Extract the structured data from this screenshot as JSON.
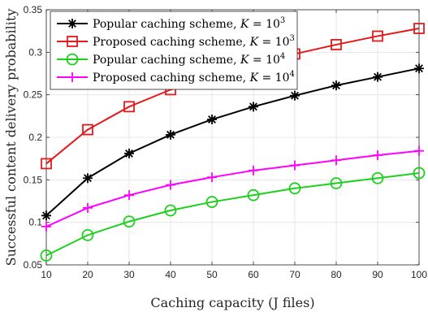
{
  "chart_data": {
    "type": "line",
    "xlabel": "Caching capacity (J files)",
    "ylabel": "Successful content delivery probability",
    "xlim": [
      10,
      100
    ],
    "ylim": [
      0.05,
      0.35
    ],
    "x": [
      10,
      20,
      30,
      40,
      50,
      60,
      70,
      80,
      90,
      100
    ],
    "x_ticks": [
      "10",
      "20",
      "30",
      "40",
      "50",
      "60",
      "70",
      "80",
      "90",
      "100"
    ],
    "y_ticks": [
      "0.05",
      "0.1",
      "0.15",
      "0.2",
      "0.25",
      "0.3",
      "0.35"
    ],
    "grid": true,
    "legend_position": "top-left",
    "series": [
      {
        "name": "Popular caching scheme, K = 10^3",
        "legend_main": "Popular caching scheme, ",
        "legend_k": "K",
        "legend_eq": " = 10",
        "legend_sup": "3",
        "color": "#000000",
        "marker": "asterisk",
        "values": [
          0.108,
          0.152,
          0.181,
          0.203,
          0.221,
          0.236,
          0.249,
          0.261,
          0.271,
          0.281
        ]
      },
      {
        "name": "Proposed caching scheme, K = 10^3",
        "legend_main": "Proposed caching scheme, ",
        "legend_k": "K",
        "legend_eq": " = 10",
        "legend_sup": "3",
        "color": "#e31a1c",
        "marker": "square",
        "values": [
          0.169,
          0.209,
          0.236,
          0.256,
          0.272,
          0.287,
          0.298,
          0.309,
          0.319,
          0.328
        ]
      },
      {
        "name": "Popular caching scheme, K = 10^4",
        "legend_main": "Popular caching scheme, ",
        "legend_k": "K",
        "legend_eq": " = 10",
        "legend_sup": "4",
        "color": "#1ed01e",
        "marker": "circle",
        "values": [
          0.061,
          0.085,
          0.101,
          0.114,
          0.124,
          0.132,
          0.14,
          0.146,
          0.152,
          0.158
        ]
      },
      {
        "name": "Proposed caching scheme, K = 10^4",
        "legend_main": "Proposed caching scheme, ",
        "legend_k": "K",
        "legend_eq": " = 10",
        "legend_sup": "4",
        "color": "#ff00ff",
        "marker": "plus",
        "values": [
          0.095,
          0.117,
          0.132,
          0.144,
          0.153,
          0.161,
          0.167,
          0.173,
          0.179,
          0.184
        ]
      }
    ]
  }
}
